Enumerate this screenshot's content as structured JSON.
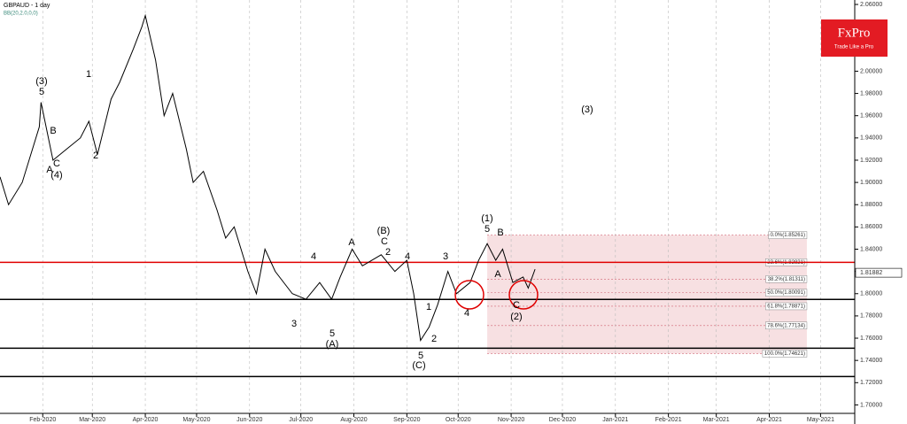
{
  "chart_data": {
    "type": "line",
    "title": "GBPAUD - 1 day",
    "subtitle": "BB(20,2.0,0,0)",
    "logo": "FxPro",
    "logo_tagline": "Trade Like a Pro",
    "current_price": {
      "value": 1.81882,
      "label": "1.81882"
    },
    "xlim": [
      6,
      506
    ],
    "xticks": [
      {
        "value": 31,
        "label": "Feb-2020"
      },
      {
        "value": 60,
        "label": "Mar-2020"
      },
      {
        "value": 91,
        "label": "Apr-2020"
      },
      {
        "value": 121,
        "label": "May-2020"
      },
      {
        "value": 152,
        "label": "Jun-2020"
      },
      {
        "value": 182,
        "label": "Jul-2020"
      },
      {
        "value": 213,
        "label": "Aug-2020"
      },
      {
        "value": 244,
        "label": "Sep-2020"
      },
      {
        "value": 274,
        "label": "Oct-2020"
      },
      {
        "value": 305,
        "label": "Nov-2020"
      },
      {
        "value": 335,
        "label": "Dec-2020"
      },
      {
        "value": 366,
        "label": "Jan-2021"
      },
      {
        "value": 397,
        "label": "Feb-2021"
      },
      {
        "value": 425,
        "label": "Mar-2021"
      },
      {
        "value": 456,
        "label": "Apr-2021"
      },
      {
        "value": 486,
        "label": "May-2021"
      }
    ],
    "ylim": [
      1.69,
      2.064
    ],
    "yticks": [
      {
        "value": 1.7,
        "label": "1.70000"
      },
      {
        "value": 1.72,
        "label": "1.72000"
      },
      {
        "value": 1.74,
        "label": "1.74000"
      },
      {
        "value": 1.76,
        "label": "1.76000"
      },
      {
        "value": 1.78,
        "label": "1.78000"
      },
      {
        "value": 1.8,
        "label": "1.80000"
      },
      {
        "value": 1.82,
        "label": "1.82000"
      },
      {
        "value": 1.84,
        "label": "1.84000"
      },
      {
        "value": 1.86,
        "label": "1.86000"
      },
      {
        "value": 1.88,
        "label": "1.88000"
      },
      {
        "value": 1.9,
        "label": "1.90000"
      },
      {
        "value": 1.92,
        "label": "1.92000"
      },
      {
        "value": 1.94,
        "label": "1.94000"
      },
      {
        "value": 1.96,
        "label": "1.96000"
      },
      {
        "value": 1.98,
        "label": "1.98000"
      },
      {
        "value": 2.0,
        "label": "2.00000"
      },
      {
        "value": 2.02,
        "label": "2.02000"
      },
      {
        "value": 2.04,
        "label": "2.04000"
      },
      {
        "value": 2.06,
        "label": "2.06000"
      }
    ],
    "grid": true,
    "series": [
      {
        "name": "GBPAUD",
        "color": "#000000",
        "x": [
          6,
          11,
          19,
          29,
          30,
          37,
          45,
          53,
          58,
          63,
          71,
          76,
          84,
          89,
          91,
          97,
          102,
          107,
          115,
          119,
          125,
          133,
          138,
          143,
          151,
          156,
          161,
          167,
          177,
          185,
          193,
          200,
          205,
          212,
          218,
          229,
          237,
          244,
          248,
          252,
          257,
          262,
          268,
          273,
          281,
          286,
          291,
          296,
          300,
          306,
          312,
          315,
          319
        ],
        "values": [
          1.905,
          1.88,
          1.9,
          1.95,
          1.972,
          1.92,
          1.93,
          1.94,
          1.955,
          1.925,
          1.975,
          1.99,
          2.02,
          2.04,
          2.05,
          2.01,
          1.96,
          1.98,
          1.93,
          1.9,
          1.91,
          1.875,
          1.85,
          1.86,
          1.82,
          1.8,
          1.84,
          1.82,
          1.8,
          1.795,
          1.81,
          1.795,
          1.815,
          1.84,
          1.825,
          1.835,
          1.82,
          1.83,
          1.8,
          1.758,
          1.77,
          1.79,
          1.82,
          1.8,
          1.81,
          1.83,
          1.845,
          1.83,
          1.84,
          1.81,
          1.815,
          1.805,
          1.822
        ]
      }
    ],
    "levels": [
      {
        "value": 1.8282,
        "color": "#e00000"
      },
      {
        "value": 1.7948,
        "color": "#000000"
      },
      {
        "value": 1.751,
        "color": "#000000"
      },
      {
        "value": 1.7255,
        "color": "#000000"
      }
    ],
    "fib_zone": {
      "x": [
        291,
        478
      ],
      "color": "#f4d6d8",
      "levels": [
        {
          "value": 1.85261,
          "label": "0.0%(1.85261)"
        },
        {
          "value": 1.82821,
          "label": "23.6%(1.82821)"
        },
        {
          "value": 1.81311,
          "label": "38.2%(1.81311)"
        },
        {
          "value": 1.80091,
          "label": "50.0%(1.80091)"
        },
        {
          "value": 1.78871,
          "label": "61.8%(1.78871)"
        },
        {
          "value": 1.77134,
          "label": "78.6%(1.77134)"
        },
        {
          "value": 1.74621,
          "label": "100.0%(1.74621)"
        }
      ]
    },
    "annotations": [
      "(3)",
      "(1)",
      "(2)",
      "(C)",
      "(A)",
      "(B)",
      "(3)",
      "(4)",
      "5",
      "5",
      "5",
      "5",
      "A",
      "B",
      "C",
      "C",
      "A",
      "1",
      "2",
      "3",
      "4",
      "3",
      "4",
      "2",
      "1",
      "B",
      "A",
      "C",
      "4",
      "2"
    ]
  }
}
